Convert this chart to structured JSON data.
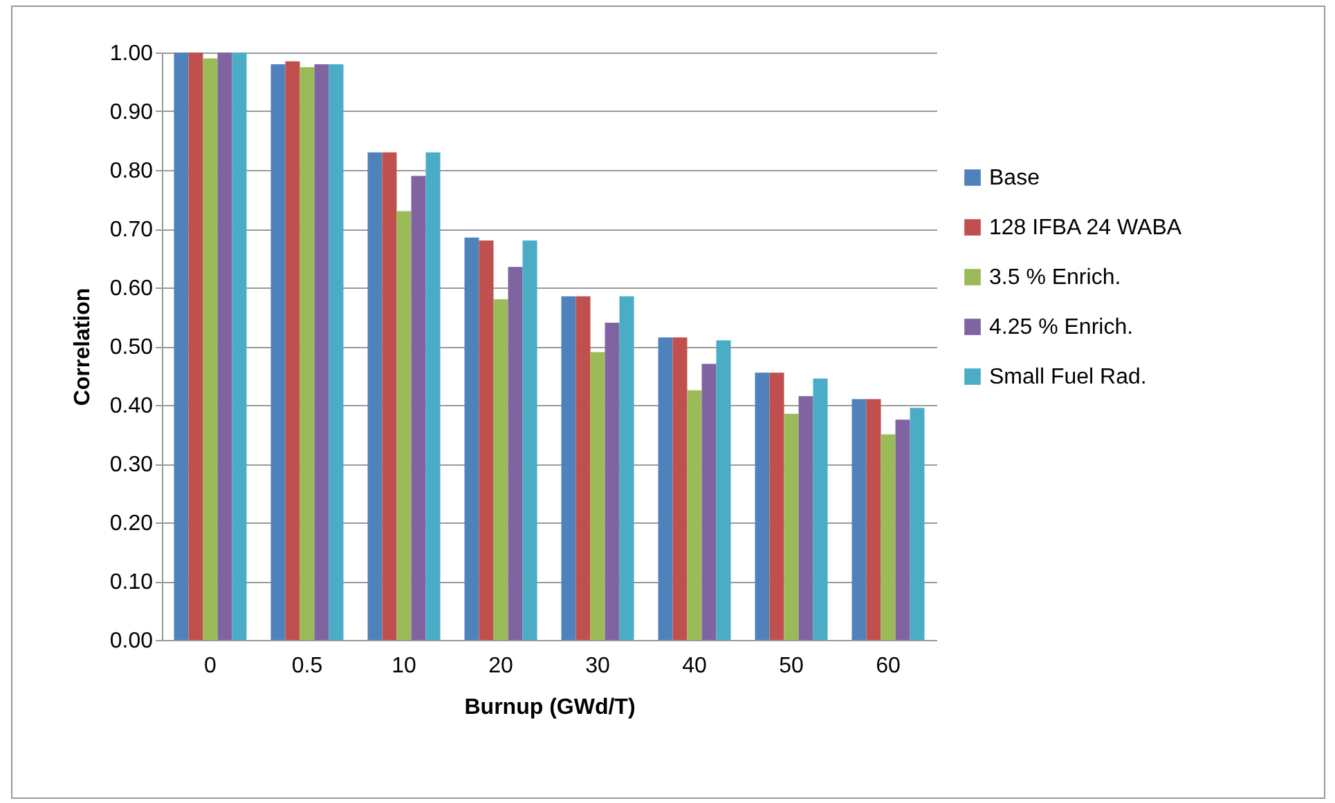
{
  "chart_data": {
    "type": "bar",
    "xlabel": "Burnup (GWd/T)",
    "ylabel": "Correlation",
    "categories": [
      "0",
      "0.5",
      "10",
      "20",
      "30",
      "40",
      "50",
      "60"
    ],
    "series": [
      {
        "name": "Base",
        "color": "#4f81bd",
        "values": [
          1.0,
          0.98,
          0.83,
          0.685,
          0.585,
          0.515,
          0.455,
          0.41
        ]
      },
      {
        "name": "128 IFBA 24 WABA",
        "color": "#c0504d",
        "values": [
          1.0,
          0.985,
          0.83,
          0.68,
          0.585,
          0.515,
          0.455,
          0.41
        ]
      },
      {
        "name": "3.5 % Enrich.",
        "color": "#9bbb59",
        "values": [
          0.99,
          0.975,
          0.73,
          0.58,
          0.49,
          0.425,
          0.385,
          0.35
        ]
      },
      {
        "name": "4.25 % Enrich.",
        "color": "#8064a2",
        "values": [
          1.0,
          0.98,
          0.79,
          0.635,
          0.54,
          0.47,
          0.415,
          0.375
        ]
      },
      {
        "name": "Small Fuel Rad.",
        "color": "#4bacc6",
        "values": [
          1.0,
          0.98,
          0.83,
          0.68,
          0.585,
          0.51,
          0.445,
          0.395
        ]
      }
    ],
    "ylim": [
      0,
      1
    ],
    "yticks": [
      {
        "value": 0,
        "label": "0.00"
      },
      {
        "value": 0.1,
        "label": "0.10"
      },
      {
        "value": 0.2,
        "label": "0.20"
      },
      {
        "value": 0.3,
        "label": "0.30"
      },
      {
        "value": 0.4,
        "label": "0.40"
      },
      {
        "value": 0.5,
        "label": "0.50"
      },
      {
        "value": 0.6,
        "label": "0.60"
      },
      {
        "value": 0.7,
        "label": "0.70"
      },
      {
        "value": 0.8,
        "label": "0.80"
      },
      {
        "value": 0.9,
        "label": "0.90"
      },
      {
        "value": 1,
        "label": "1.00"
      }
    ],
    "grid": "y",
    "legend": "right"
  }
}
